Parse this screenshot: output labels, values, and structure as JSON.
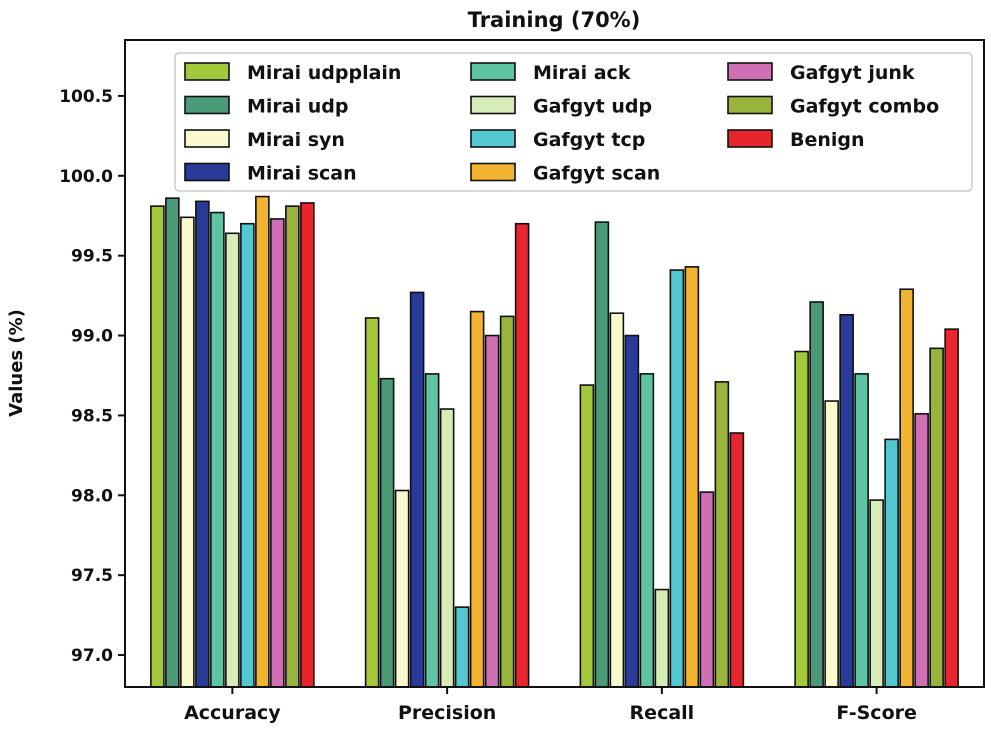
{
  "chart_data": {
    "type": "bar",
    "title": "Training (70%)",
    "xlabel": "",
    "ylabel": "Values (%)",
    "ylim": [
      96.8,
      100.85
    ],
    "yticks": [
      "97.0",
      "97.5",
      "98.0",
      "98.5",
      "99.0",
      "99.5",
      "100.0",
      "100.5"
    ],
    "grid": false,
    "legend_position": "top",
    "categories": [
      "Accuracy",
      "Precision",
      "Recall",
      "F-Score"
    ],
    "series": [
      {
        "name": "Mirai udpplain",
        "color": "#a4c83c",
        "values": [
          99.81,
          99.11,
          98.69,
          98.9
        ]
      },
      {
        "name": "Mirai udp",
        "color": "#4a9a78",
        "values": [
          99.86,
          98.73,
          99.71,
          99.21
        ]
      },
      {
        "name": "Mirai syn",
        "color": "#fafad0",
        "values": [
          99.74,
          98.03,
          99.14,
          98.59
        ]
      },
      {
        "name": "Mirai scan",
        "color": "#2a3a9a",
        "values": [
          99.84,
          99.27,
          99.0,
          99.13
        ]
      },
      {
        "name": "Mirai ack",
        "color": "#5ec4a4",
        "values": [
          99.77,
          98.76,
          98.76,
          98.76
        ]
      },
      {
        "name": "Gafgyt udp",
        "color": "#d8ecb8",
        "values": [
          99.64,
          98.54,
          97.41,
          97.97
        ]
      },
      {
        "name": "Gafgyt tcp",
        "color": "#54c8d0",
        "values": [
          99.7,
          97.3,
          99.41,
          98.35
        ]
      },
      {
        "name": "Gafgyt scan",
        "color": "#f2b430",
        "values": [
          99.87,
          99.15,
          99.43,
          99.29
        ]
      },
      {
        "name": "Gafgyt junk",
        "color": "#d070b4",
        "values": [
          99.73,
          99.0,
          98.02,
          98.51
        ]
      },
      {
        "name": "Gafgyt combo",
        "color": "#98b43c",
        "values": [
          99.81,
          99.12,
          98.71,
          98.92
        ]
      },
      {
        "name": "Benign",
        "color": "#e8242c",
        "values": [
          99.83,
          99.7,
          98.39,
          99.04
        ]
      }
    ]
  }
}
